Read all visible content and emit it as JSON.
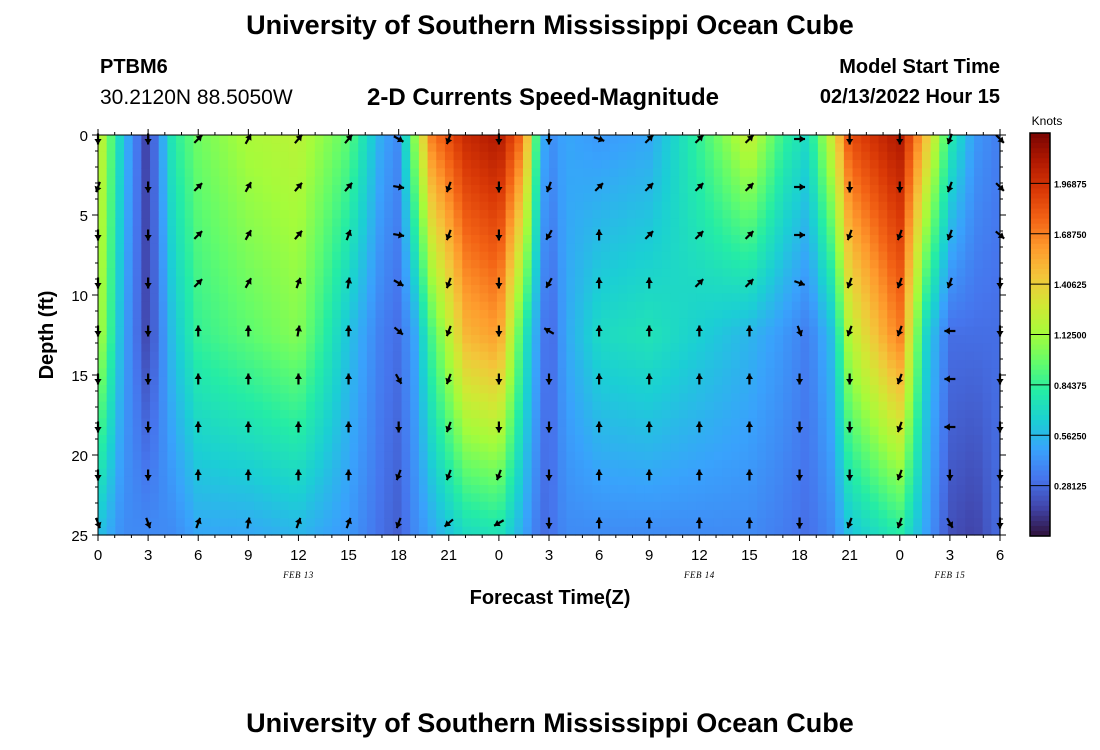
{
  "header": {
    "title": "University of Southern Mississippi Ocean Cube",
    "station_id": "PTBM6",
    "coordinates": "30.2120N  88.5050W",
    "subtitle": "2-D Currents Speed-Magnitude",
    "model_start_label": "Model Start Time",
    "model_start_value": "02/13/2022 Hour 15"
  },
  "footer": {
    "title": "University of Southern Mississippi Ocean Cube"
  },
  "colors": {
    "scale": [
      "#30123b",
      "#4145ab",
      "#4675ed",
      "#39a2fc",
      "#1bcfd4",
      "#24eca6",
      "#61fc6c",
      "#a4fc3b",
      "#d1e834",
      "#f3c63a",
      "#fe9b2d",
      "#f36315",
      "#d93806",
      "#b11901",
      "#7a0402"
    ]
  },
  "chart_data": {
    "type": "heatmap",
    "title": "2-D Currents Speed-Magnitude",
    "xlabel": "Forecast Time(Z)",
    "ylabel": "Depth (ft)",
    "x_tick_labels": [
      "0",
      "3",
      "6",
      "9",
      "12",
      "15",
      "18",
      "21",
      "0",
      "3",
      "6",
      "9",
      "12",
      "15",
      "18",
      "21",
      "0",
      "3",
      "6"
    ],
    "x_hours": [
      0,
      3,
      6,
      9,
      12,
      15,
      18,
      21,
      24,
      27,
      30,
      33,
      36,
      39,
      42,
      45,
      48,
      51,
      54
    ],
    "date_labels": [
      {
        "text": "FEB 13",
        "hour": 12
      },
      {
        "text": "FEB 14",
        "hour": 36
      },
      {
        "text": "FEB 15",
        "hour": 51
      }
    ],
    "y_ticks": [
      0,
      5,
      10,
      15,
      20,
      25
    ],
    "ylim": [
      0,
      25
    ],
    "xlim": [
      0,
      54
    ],
    "colorbar": {
      "title": "Knots",
      "labels": [
        "1.96875",
        "1.68750",
        "1.40625",
        "1.12500",
        "0.84375",
        "0.56250",
        "0.28125"
      ],
      "values": [
        1.96875,
        1.6875,
        1.40625,
        1.125,
        0.84375,
        0.5625,
        0.28125
      ],
      "range": [
        0,
        2.25
      ]
    },
    "speed_profiles": [
      {
        "hour": 0,
        "surf": 1.3,
        "mid": 1.2,
        "bot": 0.6
      },
      {
        "hour": 1.5,
        "surf": 0.6,
        "mid": 0.5,
        "bot": 0.4
      },
      {
        "hour": 3,
        "surf": 0.12,
        "mid": 0.15,
        "bot": 0.4
      },
      {
        "hour": 4.5,
        "surf": 0.8,
        "mid": 0.6,
        "bot": 0.4
      },
      {
        "hour": 6,
        "surf": 1.0,
        "mid": 0.85,
        "bot": 0.5
      },
      {
        "hour": 9,
        "surf": 1.15,
        "mid": 0.95,
        "bot": 0.5
      },
      {
        "hour": 12,
        "surf": 1.2,
        "mid": 1.05,
        "bot": 0.55
      },
      {
        "hour": 15,
        "surf": 0.95,
        "mid": 0.6,
        "bot": 0.45
      },
      {
        "hour": 17,
        "surf": 0.5,
        "mid": 0.35,
        "bot": 0.3
      },
      {
        "hour": 18,
        "surf": 0.4,
        "mid": 0.3,
        "bot": 0.25
      },
      {
        "hour": 19,
        "surf": 1.1,
        "mid": 0.5,
        "bot": 0.4
      },
      {
        "hour": 20,
        "surf": 1.7,
        "mid": 0.9,
        "bot": 0.5
      },
      {
        "hour": 22,
        "surf": 2.0,
        "mid": 1.5,
        "bot": 0.7
      },
      {
        "hour": 24,
        "surf": 2.1,
        "mid": 1.6,
        "bot": 0.75
      },
      {
        "hour": 25.5,
        "surf": 1.7,
        "mid": 0.8,
        "bot": 0.5
      },
      {
        "hour": 26.5,
        "surf": 0.6,
        "mid": 0.4,
        "bot": 0.3
      },
      {
        "hour": 27,
        "surf": 0.4,
        "mid": 0.25,
        "bot": 0.3
      },
      {
        "hour": 28,
        "surf": 0.5,
        "mid": 0.5,
        "bot": 0.4
      },
      {
        "hour": 30,
        "surf": 0.45,
        "mid": 0.7,
        "bot": 0.4
      },
      {
        "hour": 33,
        "surf": 0.5,
        "mid": 0.75,
        "bot": 0.4
      },
      {
        "hour": 36,
        "surf": 0.85,
        "mid": 0.65,
        "bot": 0.4
      },
      {
        "hour": 39,
        "surf": 1.25,
        "mid": 0.55,
        "bot": 0.4
      },
      {
        "hour": 41,
        "surf": 0.85,
        "mid": 0.45,
        "bot": 0.35
      },
      {
        "hour": 42.5,
        "surf": 0.7,
        "mid": 0.35,
        "bot": 0.3
      },
      {
        "hour": 44,
        "surf": 1.3,
        "mid": 0.6,
        "bot": 0.4
      },
      {
        "hour": 45,
        "surf": 1.85,
        "mid": 1.2,
        "bot": 0.6
      },
      {
        "hour": 48,
        "surf": 2.1,
        "mid": 1.7,
        "bot": 0.8
      },
      {
        "hour": 49.5,
        "surf": 1.5,
        "mid": 0.7,
        "bot": 0.5
      },
      {
        "hour": 51,
        "surf": 0.8,
        "mid": 0.3,
        "bot": 0.2
      },
      {
        "hour": 52.5,
        "surf": 0.45,
        "mid": 0.3,
        "bot": 0.15
      },
      {
        "hour": 54,
        "surf": 0.35,
        "mid": 0.3,
        "bot": 0.3
      }
    ],
    "vector_depths": [
      0,
      3,
      6,
      9,
      12,
      15,
      18,
      21,
      24
    ],
    "vector_directions_deg": [
      [
        180,
        200,
        180,
        180,
        180,
        180,
        180,
        180,
        160
      ],
      [
        180,
        180,
        180,
        180,
        180,
        180,
        180,
        180,
        160
      ],
      [
        45,
        45,
        45,
        45,
        0,
        0,
        0,
        0,
        20
      ],
      [
        30,
        30,
        30,
        30,
        0,
        0,
        0,
        0,
        10
      ],
      [
        40,
        40,
        40,
        20,
        10,
        0,
        0,
        0,
        20
      ],
      [
        40,
        40,
        20,
        10,
        0,
        0,
        0,
        0,
        20
      ],
      [
        120,
        100,
        100,
        120,
        130,
        150,
        180,
        200,
        200
      ],
      [
        200,
        200,
        200,
        200,
        200,
        200,
        200,
        200,
        230
      ],
      [
        180,
        180,
        180,
        180,
        180,
        180,
        180,
        200,
        240
      ],
      [
        180,
        200,
        210,
        210,
        300,
        180,
        180,
        180,
        180
      ],
      [
        110,
        45,
        0,
        0,
        0,
        0,
        0,
        0,
        0
      ],
      [
        45,
        45,
        45,
        0,
        0,
        0,
        0,
        0,
        0
      ],
      [
        45,
        45,
        45,
        45,
        0,
        0,
        0,
        0,
        0
      ],
      [
        45,
        45,
        45,
        45,
        0,
        0,
        0,
        0,
        0
      ],
      [
        90,
        90,
        90,
        110,
        160,
        180,
        180,
        180,
        180
      ],
      [
        180,
        180,
        200,
        200,
        200,
        180,
        180,
        180,
        200
      ],
      [
        180,
        180,
        200,
        200,
        200,
        200,
        200,
        200,
        200
      ],
      [
        200,
        200,
        200,
        200,
        270,
        270,
        270,
        180,
        150
      ],
      [
        135,
        135,
        130,
        180,
        180,
        180,
        180,
        180,
        180
      ]
    ]
  }
}
